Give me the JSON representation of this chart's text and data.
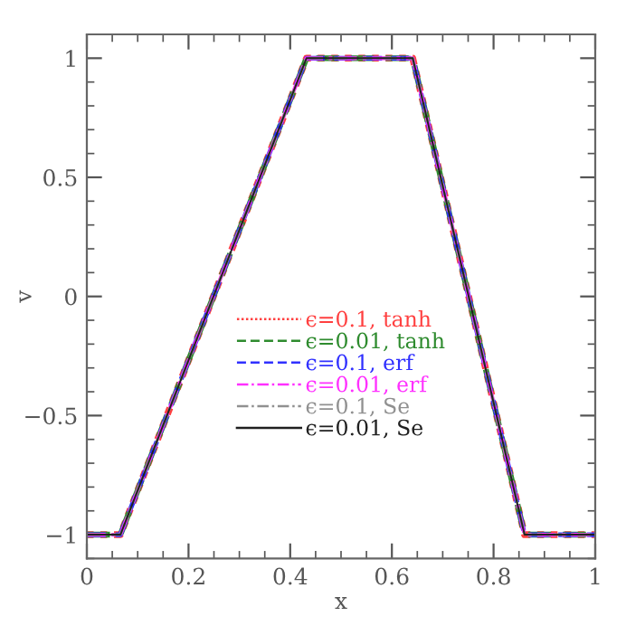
{
  "chart_data": {
    "type": "line",
    "xlabel": "x",
    "ylabel": "v",
    "x": [
      0,
      0.066,
      0.432,
      0.641,
      0.861,
      1
    ],
    "xlim": [
      0,
      1
    ],
    "ylim": [
      -1.1,
      1.1
    ],
    "xticks": [
      0,
      0.2,
      0.4,
      0.6,
      0.8,
      1
    ],
    "yticks": [
      {
        "value": -1,
        "label": "−1"
      },
      {
        "value": -0.5,
        "label": "−0.5"
      },
      0,
      0.5,
      1
    ],
    "grid": false,
    "legend": "center",
    "marker": "none",
    "series": [
      {
        "name": "ϵ=0.1, tanh",
        "color": "#ff4040",
        "line_style": "dotted",
        "values": [
          -1,
          -1,
          1,
          1,
          -1,
          -1
        ]
      },
      {
        "name": "ϵ=0.01, tanh",
        "color": "#2e8b2e",
        "line_style": "dashed",
        "values": [
          -1,
          -1,
          1,
          1,
          -1,
          -1
        ]
      },
      {
        "name": "ϵ=0.1, erf",
        "color": "#3030ff",
        "line_style": "dashed",
        "values": [
          -1,
          -1,
          1,
          1,
          -1,
          -1
        ]
      },
      {
        "name": "ϵ=0.01, erf",
        "color": "#ff30ff",
        "line_style": "dashdot",
        "values": [
          -1,
          -1,
          1,
          1,
          -1,
          -1
        ]
      },
      {
        "name": "ϵ=0.1, Se",
        "color": "#909090",
        "line_style": "dashdot",
        "values": [
          -1,
          -1,
          1,
          1,
          -1,
          -1
        ]
      },
      {
        "name": "ϵ=0.01, Se",
        "color": "#202020",
        "line_style": "solid",
        "values": [
          -1,
          -1,
          1,
          1,
          -1,
          -1
        ]
      }
    ]
  }
}
